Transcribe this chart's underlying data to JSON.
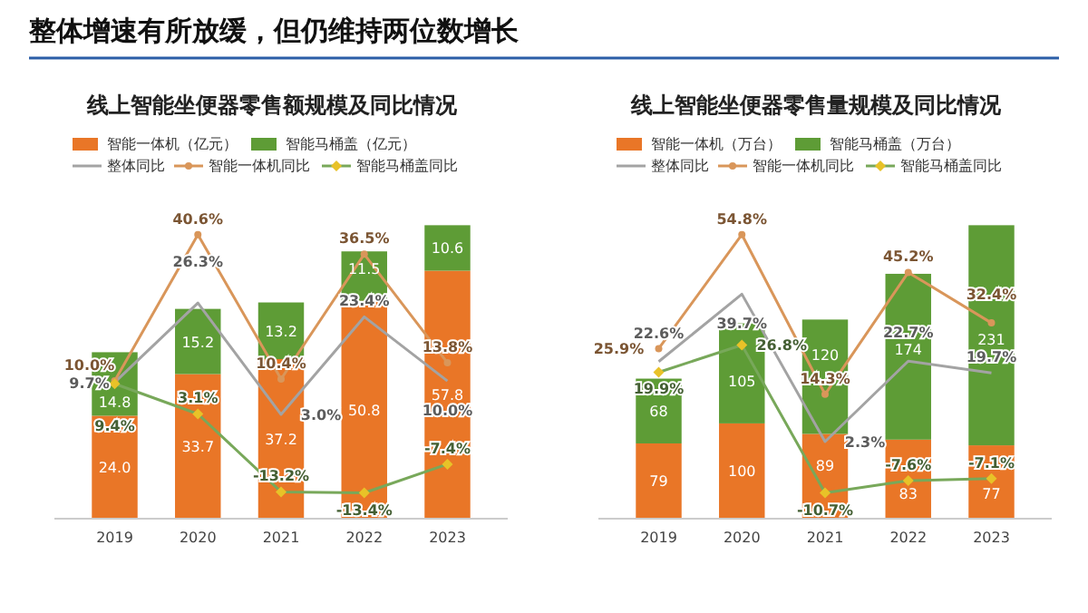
{
  "chart_data": [
    {
      "type": "bar",
      "title": "线上智能坐便器零售额规模及同比情况",
      "annotations": [
        "整体增速有所放缓，但仍维持两位数增长"
      ],
      "categories": [
        "2019",
        "2020",
        "2021",
        "2022",
        "2023"
      ],
      "stacked": true,
      "legend": "top",
      "tick_labels": "x",
      "series": [
        {
          "name": "智能一体机（亿元）",
          "type": "bar",
          "color": "#e97627",
          "values": [
            24.0,
            33.7,
            37.2,
            50.8,
            57.8
          ],
          "value_labels": [
            "24.0",
            "33.7",
            "37.2",
            "50.8",
            "57.8"
          ]
        },
        {
          "name": "智能马桶盖（亿元）",
          "type": "bar",
          "color": "#5e9c36",
          "values": [
            14.8,
            15.2,
            13.2,
            11.5,
            10.6
          ],
          "value_labels": [
            "14.8",
            "15.2",
            "13.2",
            "11.5",
            "10.6"
          ]
        },
        {
          "name": "整体同比",
          "type": "line",
          "axis": "y2",
          "color": "#a3a3a3",
          "marker": "none",
          "values": [
            9.7,
            26.3,
            3.0,
            23.4,
            10.0
          ],
          "value_labels": [
            "9.7%",
            "26.3%",
            "3.0%",
            "23.4%",
            "10.0%"
          ]
        },
        {
          "name": "智能一体机同比",
          "type": "line",
          "axis": "y2",
          "color": "#d9965a",
          "marker": "circle",
          "values": [
            10.0,
            40.6,
            10.4,
            36.5,
            13.8
          ],
          "value_labels": [
            "10.0%",
            "40.6%",
            "10.4%",
            "36.5%",
            "13.8%"
          ]
        },
        {
          "name": "智能马桶盖同比",
          "type": "line",
          "axis": "y2",
          "color": "#78a85a",
          "marker": "diamond",
          "values": [
            9.4,
            3.1,
            -13.2,
            -13.4,
            -7.4
          ],
          "value_labels": [
            "9.4%",
            "3.1%",
            "-13.2%",
            "-13.4%",
            "-7.4%"
          ]
        }
      ]
    },
    {
      "type": "bar",
      "title": "线上智能坐便器零售量规模及同比情况",
      "categories": [
        "2019",
        "2020",
        "2021",
        "2022",
        "2023"
      ],
      "stacked": true,
      "legend": "top",
      "tick_labels": "x",
      "series": [
        {
          "name": "智能一体机（万台）",
          "type": "bar",
          "color": "#e97627",
          "values": [
            79,
            100,
            89,
            83,
            77
          ],
          "value_labels": [
            "79",
            "100",
            "89",
            "83",
            "77"
          ]
        },
        {
          "name": "智能马桶盖（万台）",
          "type": "bar",
          "color": "#5e9c36",
          "values": [
            68,
            105,
            120,
            174,
            231
          ],
          "value_labels": [
            "68",
            "105",
            "120",
            "174",
            "231"
          ]
        },
        {
          "name": "整体同比",
          "type": "line",
          "axis": "y2",
          "color": "#a3a3a3",
          "marker": "none",
          "values": [
            22.6,
            39.7,
            2.3,
            22.7,
            19.7
          ],
          "value_labels": [
            "22.6%",
            "39.7%",
            "2.3%",
            "22.7%",
            "19.7%"
          ]
        },
        {
          "name": "智能一体机同比",
          "type": "line",
          "axis": "y2",
          "color": "#d9965a",
          "marker": "circle",
          "values": [
            25.9,
            54.8,
            14.3,
            45.2,
            32.4
          ],
          "value_labels": [
            "25.9%",
            "54.8%",
            "14.3%",
            "45.2%",
            "32.4%"
          ]
        },
        {
          "name": "智能马桶盖同比",
          "type": "line",
          "axis": "y2",
          "color": "#78a85a",
          "marker": "diamond",
          "values": [
            19.9,
            26.8,
            -10.7,
            -7.6,
            -7.1
          ],
          "value_labels": [
            "19.9%",
            "26.8%",
            "-10.7%",
            "-7.6%",
            "-7.1%"
          ]
        }
      ]
    }
  ]
}
